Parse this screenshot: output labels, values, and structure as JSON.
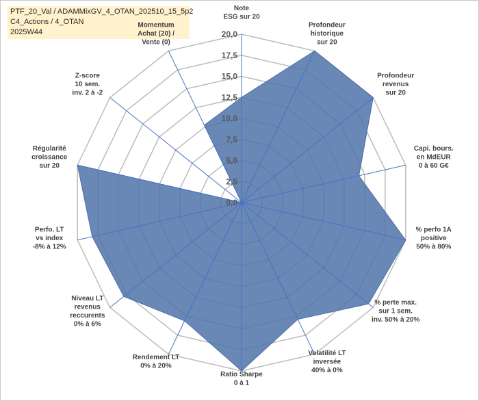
{
  "title": {
    "lines": [
      "PTF_20_Val / ADAMMixGV_4_OTAN_202510_15_5p2",
      "C4_Actions / 4_OTAN",
      "2025W44"
    ]
  },
  "colors": {
    "title_bg": "#fff2cc",
    "fill": "#4f73a8",
    "axis_line": "#4472c4",
    "grid": "#bfbfbf",
    "label_highlight": "#fff2cc"
  },
  "chart_data": {
    "type": "radar",
    "rmin": 0,
    "rmax": 20,
    "ticks": [
      "0,0",
      "2,5",
      "5,0",
      "7,5",
      "10,0",
      "12,5",
      "15,0",
      "17,5",
      "20,0"
    ],
    "tick_values": [
      0,
      2.5,
      5,
      7.5,
      10,
      12.5,
      15,
      17.5,
      20
    ],
    "grid": true,
    "axes": [
      {
        "label": [
          "Note",
          "ESG sur 20"
        ],
        "value": 12.5,
        "highlight": false
      },
      {
        "label": [
          "Profondeur",
          "historique",
          "sur 20"
        ],
        "value": 20,
        "highlight": false
      },
      {
        "label": [
          "Profondeur",
          "revenus",
          "sur 20"
        ],
        "value": 20,
        "highlight": false
      },
      {
        "label": [
          "Capi. bours.",
          "en MdEUR",
          "0 à 60 G€"
        ],
        "value": 14.3,
        "highlight": false
      },
      {
        "label": [
          "% perfo 1A",
          "positive",
          "50% à 80%"
        ],
        "value": 20,
        "highlight": false
      },
      {
        "label": [
          "% perte max.",
          "sur 1 sem.",
          "inv. 50% à 20%"
        ],
        "value": 19.3,
        "highlight": false
      },
      {
        "label": [
          "Volatilité LT",
          "inversée",
          "40% à 0%"
        ],
        "value": 15.4,
        "highlight": false
      },
      {
        "label": [
          "Ratio Sharpe",
          "0 à 1"
        ],
        "value": 20,
        "highlight": false
      },
      {
        "label": [
          "Rendement LT",
          "0% à 20%"
        ],
        "value": 15.6,
        "highlight": false
      },
      {
        "label": [
          "Niveau LT",
          "revenus",
          "reccurents",
          "0% à 6%"
        ],
        "value": 17.9,
        "highlight": false
      },
      {
        "label": [
          "Perfo. LT",
          "vs index",
          "-8% à 12%"
        ],
        "value": 18.2,
        "highlight": false
      },
      {
        "label": [
          "Régularité",
          "croissance",
          "sur 20"
        ],
        "value": 20,
        "highlight": false
      },
      {
        "label": [
          "Z-score",
          "10 sem.",
          "inv. 2 à -2"
        ],
        "value": 0,
        "highlight": false
      },
      {
        "label": [
          "Momentum",
          "Achat (20) /",
          "Vente (0)"
        ],
        "value": 10.2,
        "highlight": true
      }
    ]
  }
}
